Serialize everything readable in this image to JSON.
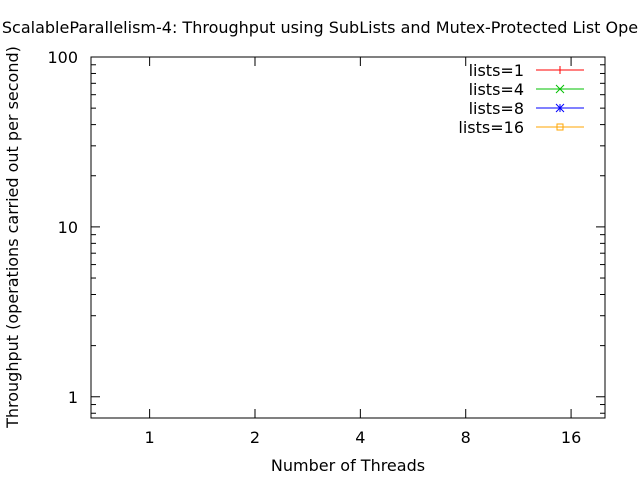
{
  "chart_data": {
    "type": "line",
    "title": "ScalableParallelism-4: Throughput using SubLists and Mutex-Protected List Ope",
    "xlabel": "Number of Threads",
    "ylabel": "Throughput (operations carried out per second)",
    "x_scale": "log2",
    "y_scale": "log10",
    "xlim": [
      0.68,
      20
    ],
    "ylim": [
      0.75,
      100
    ],
    "x_ticks": [
      {
        "value": 1,
        "label": "1"
      },
      {
        "value": 2,
        "label": "2"
      },
      {
        "value": 4,
        "label": "4"
      },
      {
        "value": 8,
        "label": "8"
      },
      {
        "value": 16,
        "label": "16"
      }
    ],
    "y_ticks": [
      {
        "value": 1,
        "label": "1"
      },
      {
        "value": 10,
        "label": "10"
      },
      {
        "value": 100,
        "label": "100"
      }
    ],
    "grid": false,
    "legend_position": "top-right",
    "series": [
      {
        "name": "lists=1",
        "color": "#ff0000",
        "marker": "plus",
        "points": []
      },
      {
        "name": "lists=4",
        "color": "#00c000",
        "marker": "cross",
        "points": []
      },
      {
        "name": "lists=8",
        "color": "#0000ff",
        "marker": "star",
        "points": []
      },
      {
        "name": "lists=16",
        "color": "#ffa500",
        "marker": "square",
        "points": []
      }
    ]
  }
}
